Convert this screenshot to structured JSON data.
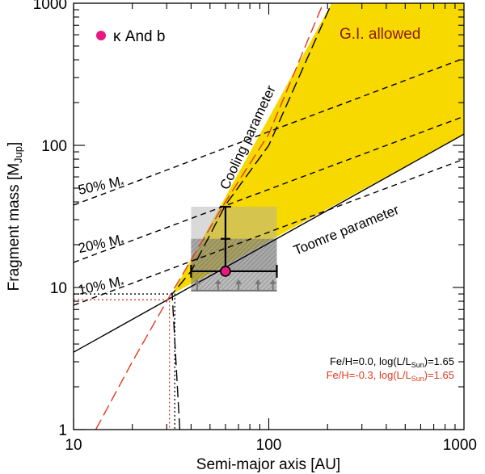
{
  "chart_data": {
    "type": "line",
    "xlabel": "Semi-major axis [AU]",
    "ylabel_main": "Fragment mass [M",
    "ylabel_sub": "Jup",
    "ylabel_end": "]",
    "x_scale": "log",
    "y_scale": "log",
    "xlim": [
      10,
      1000
    ],
    "ylim": [
      1,
      1000
    ],
    "x_ticks": [
      {
        "value": 10,
        "label": "10"
      },
      {
        "value": 100,
        "label": "100"
      },
      {
        "value": 1000,
        "label": "1000"
      }
    ],
    "y_ticks": [
      {
        "value": 1,
        "label": "1"
      },
      {
        "value": 10,
        "label": "10"
      },
      {
        "value": 100,
        "label": "100"
      },
      {
        "value": 1000,
        "label": "1000"
      }
    ],
    "allowed_region": {
      "label": "G.I. allowed",
      "color": "#f7d900",
      "points": [
        [
          32,
          9
        ],
        [
          210,
          1000
        ],
        [
          1000,
          1000
        ],
        [
          1000,
          120
        ]
      ]
    },
    "curves": [
      {
        "id": "toomre",
        "label": "Toomre parameter",
        "style": "solid",
        "color": "#000000",
        "points": [
          [
            10,
            3.5
          ],
          [
            1000,
            120
          ]
        ]
      },
      {
        "id": "cooling",
        "label": "Cooling parameter",
        "style": "longdash",
        "color": "#000000",
        "points": [
          [
            35,
            1
          ],
          [
            32,
            9
          ],
          [
            40,
            13
          ],
          [
            60,
            38
          ],
          [
            100,
            100
          ],
          [
            210,
            1000
          ]
        ]
      },
      {
        "id": "cooling-lowZ",
        "style": "longdash",
        "color": "#e03a1e",
        "points": [
          [
            13,
            1
          ],
          [
            20,
            3
          ],
          [
            30,
            8
          ],
          [
            60,
            40
          ],
          [
            100,
            120
          ],
          [
            190,
            1000
          ]
        ]
      },
      {
        "id": "mstar-50",
        "label": "50% M",
        "style": "dashed",
        "color": "#000000",
        "points": [
          [
            10,
            38
          ],
          [
            1000,
            410
          ]
        ]
      },
      {
        "id": "mstar-20",
        "label": "20% M",
        "style": "dashed",
        "color": "#000000",
        "points": [
          [
            10,
            15
          ],
          [
            1000,
            160
          ]
        ]
      },
      {
        "id": "mstar-10",
        "label": "10% M",
        "style": "dashed",
        "color": "#000000",
        "points": [
          [
            10,
            7.5
          ],
          [
            1000,
            80
          ]
        ]
      }
    ],
    "mass_fraction_labels": [
      {
        "text": "50% M",
        "a": 10.7,
        "m": 45
      },
      {
        "text": "20% M",
        "a": 10.7,
        "m": 17.5
      },
      {
        "text": "10% M",
        "a": 10.7,
        "m": 8.9
      }
    ],
    "star_symbol": "*",
    "dotted_guides": [
      {
        "color": "#000000",
        "a": 33,
        "m": 9
      },
      {
        "color": "#e03a1e",
        "a": 31,
        "m": 8.2
      }
    ],
    "uncertainty_boxes": [
      {
        "a_min": 40,
        "a_max": 110,
        "m_min": 13,
        "m_max": 37,
        "color": "#aaaaaa",
        "opacity": 0.45
      },
      {
        "a_min": 40,
        "a_max": 110,
        "m_min": 9.5,
        "m_max": 22,
        "color": "#777777",
        "opacity": 0.5
      }
    ],
    "kappa_and_b": {
      "label": "κ And b",
      "color": "#e8187f",
      "a": 60,
      "m": 13,
      "a_err": [
        40,
        110
      ],
      "m_err": [
        13,
        37
      ],
      "m_cap_mid": 22,
      "lower_limit_m": 9.5,
      "lower_limit_a": [
        43,
        55,
        70,
        88,
        105
      ]
    },
    "conditions": [
      {
        "text": "Fe/H=0.0, log(L/L",
        "sub": "Sun",
        "tail": ")=1.65",
        "color": "#000000"
      },
      {
        "text": "Fe/H=-0.3, log(L/L",
        "sub": "Sun",
        "tail": ")=1.65",
        "color": "#e03a1e"
      }
    ]
  }
}
